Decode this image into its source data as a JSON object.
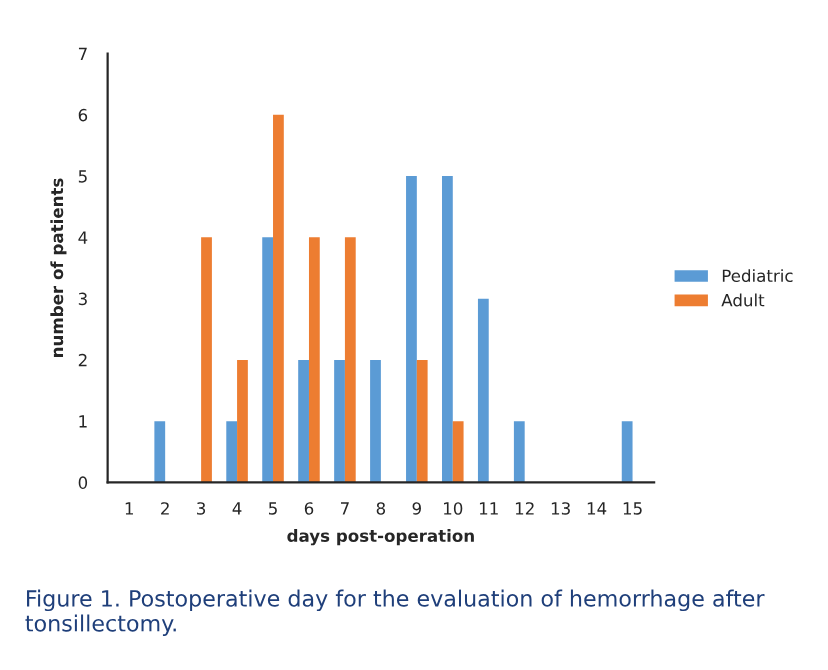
{
  "chart_data": {
    "type": "bar",
    "xlabel": "days post-operation",
    "ylabel": "number of patients",
    "categories": [
      "1",
      "2",
      "3",
      "4",
      "5",
      "6",
      "7",
      "8",
      "9",
      "10",
      "11",
      "12",
      "13",
      "14",
      "15"
    ],
    "series": [
      {
        "name": "Pediatric",
        "color": "#5b9bd5",
        "values": [
          0,
          1,
          0,
          1,
          4,
          2,
          2,
          2,
          5,
          5,
          3,
          1,
          0,
          0,
          1
        ]
      },
      {
        "name": "Adult",
        "color": "#ed7d31",
        "values": [
          0,
          0,
          4,
          2,
          6,
          4,
          4,
          0,
          2,
          1,
          0,
          0,
          0,
          0,
          0
        ]
      }
    ],
    "ylim": [
      0,
      7
    ],
    "yticks": [
      0,
      1,
      2,
      3,
      4,
      5,
      6,
      7
    ],
    "grid": false,
    "legend": "right",
    "annotations": [
      "Figure 1. Postoperative day for the evaluation of hemorrhage after tonsillectomy."
    ]
  }
}
